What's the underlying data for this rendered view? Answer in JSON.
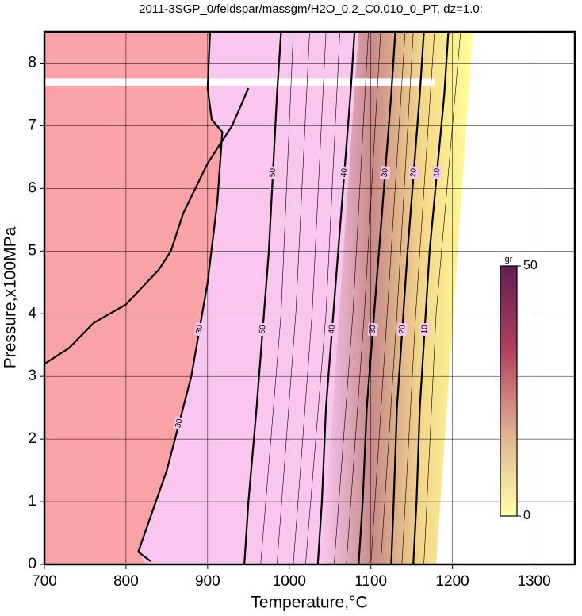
{
  "chart_data": {
    "type": "contour",
    "title": "2011-3SGP_0/feldspar/massgm/H2O_0.2_C0.010_0_PT, dz=1.0:",
    "x_label": "Temperature,°C",
    "y_label": "Pressure,x100MPa",
    "xlim": [
      700,
      1350
    ],
    "ylim": [
      0,
      8.5
    ],
    "xticks": [
      700,
      800,
      900,
      1000,
      1100,
      1200,
      1300
    ],
    "yticks": [
      0,
      1,
      2,
      3,
      4,
      5,
      6,
      7,
      8
    ],
    "grid": true,
    "background": "#f9c6ef",
    "regions": [
      {
        "color": "#f9a3a6",
        "x": [
          700,
          825,
          815,
          850,
          880,
          900,
          912,
          918,
          905,
          900,
          903,
          700
        ],
        "y": [
          0,
          0,
          0.2,
          1.5,
          3,
          4.5,
          5.8,
          6.9,
          7.1,
          7.6,
          8.5,
          8.5
        ]
      },
      {
        "colors": [
          "#f9c6ef",
          "#c98a8a",
          "#f5d88a",
          "#ffff99"
        ],
        "x": [
          1040,
          1180,
          1225,
          1085
        ],
        "y": [
          0,
          0,
          8.5,
          8.5
        ]
      },
      {
        "color": "#ffffff",
        "x": [
          1180,
          1350,
          1350,
          1225
        ],
        "y": [
          0,
          0,
          8.5,
          8.5
        ]
      },
      {
        "color": "#ffffff",
        "x": [
          700,
          1178,
          1178,
          700
        ],
        "y": [
          7.64,
          7.64,
          7.76,
          7.76
        ]
      }
    ],
    "contours": [
      {
        "width": 2.2,
        "x": [
          700,
          730,
          760,
          800,
          840,
          855,
          870,
          900,
          930,
          950
        ],
        "y": [
          3.2,
          3.45,
          3.85,
          4.15,
          4.7,
          5.0,
          5.6,
          6.4,
          7.0,
          7.6
        ]
      },
      {
        "level": 30,
        "width": 2.2,
        "x": [
          830,
          815,
          850,
          880,
          900,
          912,
          918,
          905,
          900,
          903
        ],
        "y": [
          0.05,
          0.2,
          1.5,
          3,
          4.5,
          5.8,
          6.9,
          7.1,
          7.6,
          8.5
        ]
      },
      {
        "level": 50,
        "width": 2.2,
        "x": [
          945,
          950,
          960,
          975,
          985,
          990
        ],
        "y": [
          0,
          1,
          2.5,
          5,
          7.5,
          8.5
        ]
      },
      {
        "level": 40,
        "width": 2.2,
        "x": [
          1035,
          1040,
          1045,
          1060,
          1075,
          1080
        ],
        "y": [
          0,
          1,
          2.5,
          5,
          7.5,
          8.5
        ]
      },
      {
        "level": 30,
        "width": 2.2,
        "x": [
          1085,
          1090,
          1095,
          1110,
          1125,
          1130
        ],
        "y": [
          0,
          1,
          2.5,
          5,
          7.5,
          8.5
        ]
      },
      {
        "level": 20,
        "width": 2.2,
        "x": [
          1125,
          1128,
          1132,
          1145,
          1160,
          1165
        ],
        "y": [
          0,
          1,
          2.5,
          5,
          7.5,
          8.5
        ]
      },
      {
        "level": 10,
        "width": 2.2,
        "x": [
          1152,
          1156,
          1160,
          1172,
          1190,
          1195
        ],
        "y": [
          0,
          1,
          2.5,
          5,
          7.5,
          8.5
        ]
      }
    ],
    "thin_contours": [
      {
        "x": [
          965,
          990,
          1005
        ],
        "y": [
          0,
          4,
          8.5
        ]
      },
      {
        "x": [
          985,
          1008,
          1025
        ],
        "y": [
          0,
          4,
          8.5
        ]
      },
      {
        "x": [
          1005,
          1028,
          1045
        ],
        "y": [
          0,
          4,
          8.5
        ]
      },
      {
        "x": [
          1020,
          1045,
          1062
        ],
        "y": [
          0,
          4,
          8.5
        ]
      },
      {
        "x": [
          1055,
          1078,
          1097
        ],
        "y": [
          0,
          4,
          8.5
        ]
      },
      {
        "x": [
          1070,
          1092,
          1112
        ],
        "y": [
          0,
          4,
          8.5
        ]
      },
      {
        "x": [
          1100,
          1120,
          1142
        ],
        "y": [
          0,
          4,
          8.5
        ]
      },
      {
        "x": [
          1112,
          1132,
          1152
        ],
        "y": [
          0,
          4,
          8.5
        ]
      },
      {
        "x": [
          1138,
          1155,
          1178
        ],
        "y": [
          0,
          4,
          8.5
        ]
      },
      {
        "x": [
          1165,
          1180,
          1210
        ],
        "y": [
          0,
          4,
          8.5
        ]
      }
    ],
    "colorbar": {
      "label": "gr",
      "lim": [
        0,
        50
      ],
      "ticks": [
        0,
        50
      ],
      "colors": [
        "#ffffaa",
        "#e0b090",
        "#b04060",
        "#602050"
      ]
    }
  }
}
